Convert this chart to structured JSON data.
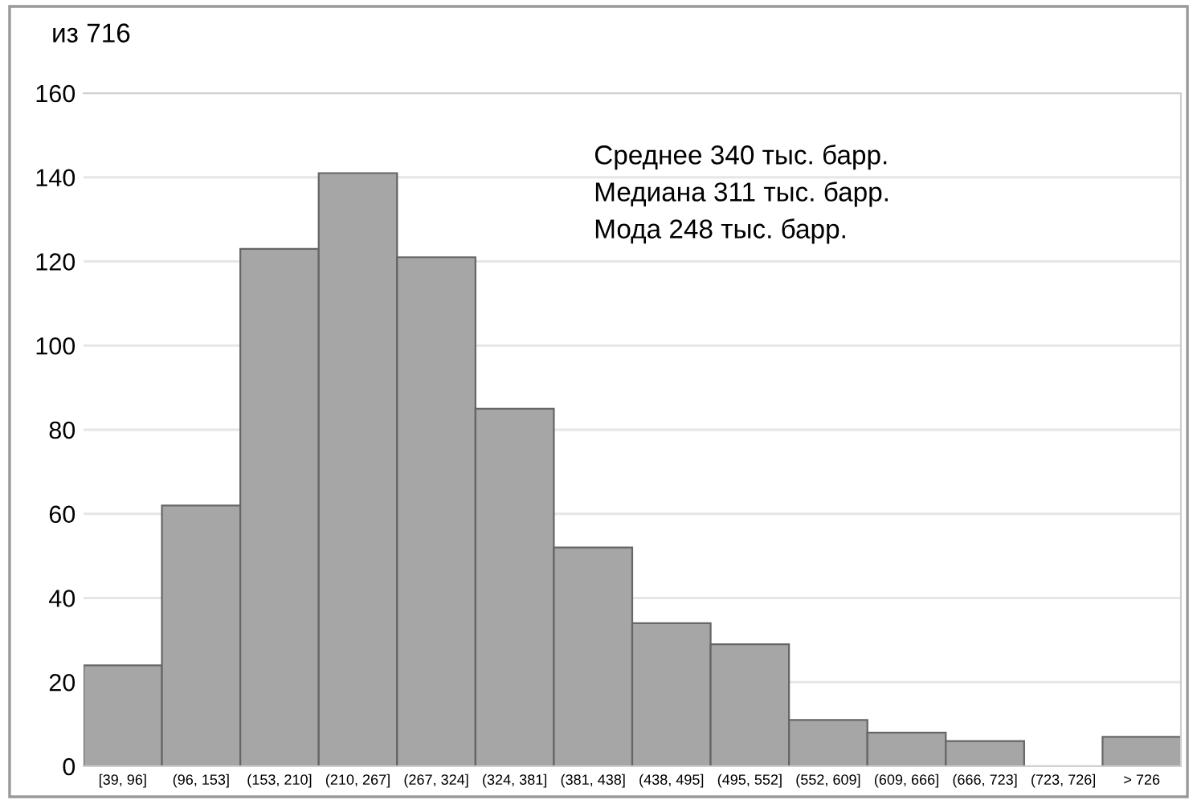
{
  "chart_data": {
    "type": "bar",
    "title": "из 716",
    "categories": [
      "[39, 96]",
      "(96, 153]",
      "(153, 210]",
      "(210, 267]",
      "(267, 324]",
      "(324, 381]",
      "(381, 438]",
      "(438, 495]",
      "(495, 552]",
      "(552, 609]",
      "(609, 666]",
      "(666, 723]",
      "(723, 726]",
      "> 726"
    ],
    "values": [
      24,
      62,
      123,
      141,
      121,
      85,
      52,
      34,
      29,
      11,
      8,
      6,
      0,
      7
    ],
    "color": "#a6a6a6",
    "ylim": [
      0,
      160
    ],
    "yticks": [
      0,
      20,
      40,
      60,
      80,
      100,
      120,
      140,
      160
    ],
    "grid": "y",
    "annotations": [
      "Среднее 340 тыс. барр.",
      "Медиана 311 тыс. барр.",
      "Мода 248 тыс. барр."
    ]
  }
}
